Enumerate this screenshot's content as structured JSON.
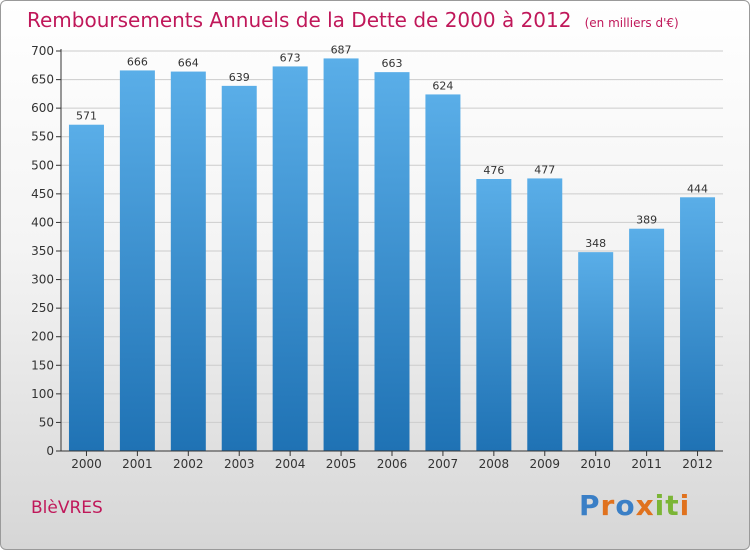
{
  "title": "Remboursements Annuels de la Dette de 2000 à 2012",
  "unit": "(en milliers d'€)",
  "commune": "BlèVRES",
  "logo": {
    "text": "Proxiti",
    "letter_colors": [
      "#3a7fc6",
      "#e0721e",
      "#3a7fc6",
      "#e0721e",
      "#7bb536",
      "#7bb536",
      "#e0721e"
    ]
  },
  "colors": {
    "title": "#c0185a",
    "bar_top": "#5aaee8",
    "bar_bottom": "#1f72b4",
    "grid": "#cccccc",
    "axis": "#333333"
  },
  "chart_data": {
    "type": "bar",
    "title": "Remboursements Annuels de la Dette de 2000 à 2012",
    "xlabel": "",
    "ylabel": "",
    "categories": [
      "2000",
      "2001",
      "2002",
      "2003",
      "2004",
      "2005",
      "2006",
      "2007",
      "2008",
      "2009",
      "2010",
      "2011",
      "2012"
    ],
    "values": [
      571,
      666,
      664,
      639,
      673,
      687,
      663,
      624,
      476,
      477,
      348,
      389,
      444
    ],
    "ylim": [
      0,
      700
    ],
    "yticks": [
      0,
      50,
      100,
      150,
      200,
      250,
      300,
      350,
      400,
      450,
      500,
      550,
      600,
      650,
      700
    ],
    "grid": true,
    "data_labels": true
  }
}
